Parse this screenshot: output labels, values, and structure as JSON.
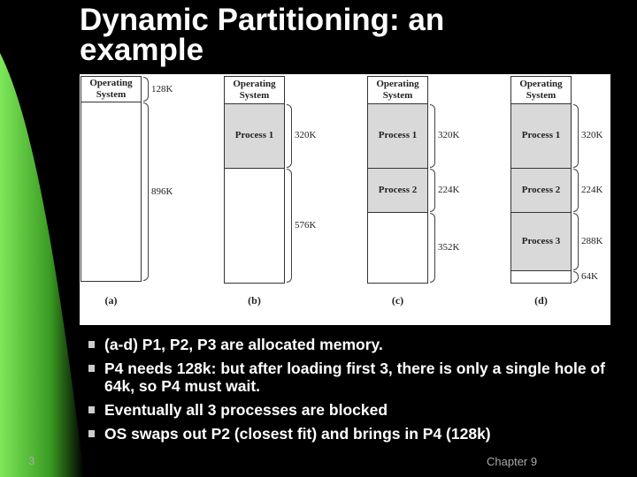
{
  "title": "Dynamic Partitioning: an example",
  "figure": {
    "columns": [
      {
        "label": "(a)",
        "blocks": [
          {
            "text": "Operating System",
            "size": "128K"
          },
          {
            "size": "896K"
          }
        ]
      },
      {
        "label": "(b)",
        "blocks": [
          {
            "text": "Operating System"
          },
          {
            "text": "Process 1",
            "size": "320K"
          },
          {
            "size": "576K"
          }
        ]
      },
      {
        "label": "(c)",
        "blocks": [
          {
            "text": "Operating System"
          },
          {
            "text": "Process 1",
            "size": "320K"
          },
          {
            "text": "Process 2",
            "size": "224K"
          },
          {
            "size": "352K"
          }
        ]
      },
      {
        "label": "(d)",
        "blocks": [
          {
            "text": "Operating System"
          },
          {
            "text": "Process 1",
            "size": "320K"
          },
          {
            "text": "Process 2",
            "size": "224K"
          },
          {
            "text": "Process 3",
            "size": "288K"
          },
          {
            "size": "64K"
          }
        ]
      }
    ]
  },
  "bullets": [
    "(a-d) P1, P2, P3 are allocated memory.",
    "P4 needs 128k: but after loading first 3, there is only a single hole of 64k, so P4 must wait.",
    "Eventually all 3 processes are blocked",
    "OS swaps out P2 (closest fit) and brings in P4 (128k)"
  ],
  "footer": {
    "page": "3",
    "chapter": "Chapter 9"
  }
}
